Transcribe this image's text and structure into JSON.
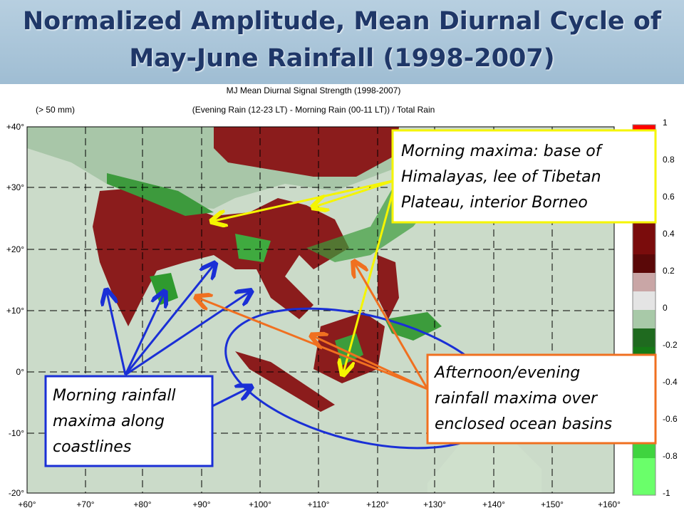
{
  "header": {
    "title": "Normalized Amplitude, Mean Diurnal Cycle of May-June Rainfall (1998-2007)"
  },
  "map": {
    "title_lines": [
      "MJ Mean Diurnal Signal Strength (1998-2007)",
      "(Evening Rain (12-23 LT) - Morning Rain (00-11 LT)) / Total Rain"
    ],
    "threshold_note": "(> 50 mm)",
    "lat_labels": [
      "+40°",
      "+30°",
      "+20°",
      "+10°",
      "0°",
      "-10°",
      "-20°"
    ],
    "lon_labels": [
      "+60°",
      "+70°",
      "+80°",
      "+90°",
      "+100°",
      "+110°",
      "+120°",
      "+130°",
      "+140°",
      "+150°",
      "+160°"
    ]
  },
  "colorbar": {
    "labels": [
      "1",
      "0.8",
      "0.6",
      "0.4",
      "0.2",
      "0",
      "-0.2",
      "-0.4",
      "-0.6",
      "-0.8",
      "-1"
    ]
  },
  "annotations": [
    {
      "lines": [
        "Morning maxima: base of",
        "Himalayas, lee of Tibetan",
        "Plateau, interior Borneo"
      ]
    },
    {
      "lines": [
        "Morning rainfall",
        "maxima along",
        "coastlines"
      ]
    },
    {
      "lines": [
        "Afternoon/evening",
        "rainfall maxima over",
        "enclosed ocean basins"
      ]
    }
  ]
}
